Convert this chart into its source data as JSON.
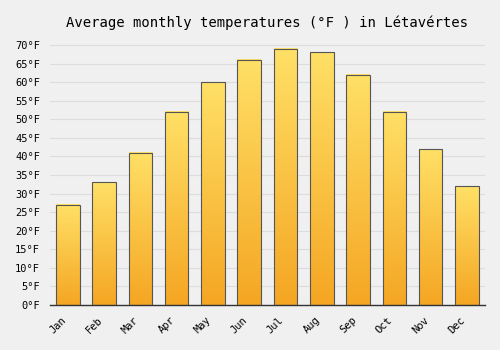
{
  "title": "Average monthly temperatures (°F ) in Létavértes",
  "months": [
    "Jan",
    "Feb",
    "Mar",
    "Apr",
    "May",
    "Jun",
    "Jul",
    "Aug",
    "Sep",
    "Oct",
    "Nov",
    "Dec"
  ],
  "values": [
    27,
    33,
    41,
    52,
    60,
    66,
    69,
    68,
    62,
    52,
    42,
    32
  ],
  "bar_color_bottom": "#F5A623",
  "bar_color_top": "#FFD966",
  "bar_edge_color": "#555555",
  "ylim": [
    0,
    72
  ],
  "yticks": [
    0,
    5,
    10,
    15,
    20,
    25,
    30,
    35,
    40,
    45,
    50,
    55,
    60,
    65,
    70
  ],
  "background_color": "#f0f0f0",
  "grid_color": "#dddddd",
  "title_fontsize": 10,
  "tick_fontsize": 7.5,
  "font_family": "monospace"
}
